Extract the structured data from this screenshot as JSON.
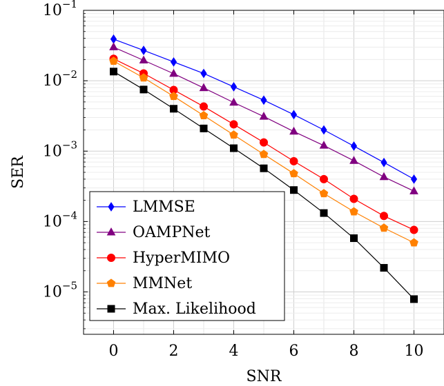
{
  "chart_data": {
    "type": "line",
    "title": "",
    "xlabel": "SNR",
    "ylabel": "SER",
    "xlim": [
      -1,
      11
    ],
    "ylim": [
      2.5e-06,
      0.1
    ],
    "yscale": "log",
    "grid": true,
    "legend_position": "bottom-left",
    "x": [
      0,
      1,
      2,
      3,
      4,
      5,
      6,
      7,
      8,
      9,
      10
    ],
    "x_ticks": [
      {
        "value": 0,
        "label": "0"
      },
      {
        "value": 2,
        "label": "2"
      },
      {
        "value": 4,
        "label": "4"
      },
      {
        "value": 6,
        "label": "6"
      },
      {
        "value": 8,
        "label": "8"
      },
      {
        "value": 10,
        "label": "10"
      }
    ],
    "y_ticks": [
      {
        "value": 0.1,
        "base": "10",
        "exp": "−1"
      },
      {
        "value": 0.01,
        "base": "10",
        "exp": "−2"
      },
      {
        "value": 0.001,
        "base": "10",
        "exp": "−3"
      },
      {
        "value": 0.0001,
        "base": "10",
        "exp": "−4"
      },
      {
        "value": 1e-05,
        "base": "10",
        "exp": "−5"
      }
    ],
    "series": [
      {
        "name": "LMMSE",
        "color": "#0000ff",
        "marker": "diamond",
        "values": [
          0.039,
          0.027,
          0.0185,
          0.0127,
          0.0082,
          0.0053,
          0.0033,
          0.002,
          0.00118,
          0.00069,
          0.0004
        ]
      },
      {
        "name": "OAMPNet",
        "color": "#800080",
        "marker": "triangle",
        "values": [
          0.03,
          0.0195,
          0.0126,
          0.0079,
          0.0049,
          0.0031,
          0.0019,
          0.0012,
          0.00073,
          0.00043,
          0.00027
        ]
      },
      {
        "name": "HyperMIMO",
        "color": "#ff0000",
        "marker": "circle",
        "values": [
          0.0205,
          0.0127,
          0.0074,
          0.0043,
          0.0024,
          0.00133,
          0.00072,
          0.0004,
          0.00021,
          0.00012,
          7.6e-05
        ]
      },
      {
        "name": "MMNet",
        "color": "#ff8000",
        "marker": "pentagon",
        "values": [
          0.019,
          0.011,
          0.006,
          0.0032,
          0.0017,
          0.0009,
          0.00048,
          0.00025,
          0.000138,
          8.1e-05,
          5e-05
        ]
      },
      {
        "name": "Max. Likelihood",
        "color": "#000000",
        "marker": "square",
        "values": [
          0.0135,
          0.0075,
          0.004,
          0.0021,
          0.0011,
          0.00057,
          0.00028,
          0.000132,
          5.8e-05,
          2.2e-05,
          7.9e-06
        ]
      }
    ]
  }
}
